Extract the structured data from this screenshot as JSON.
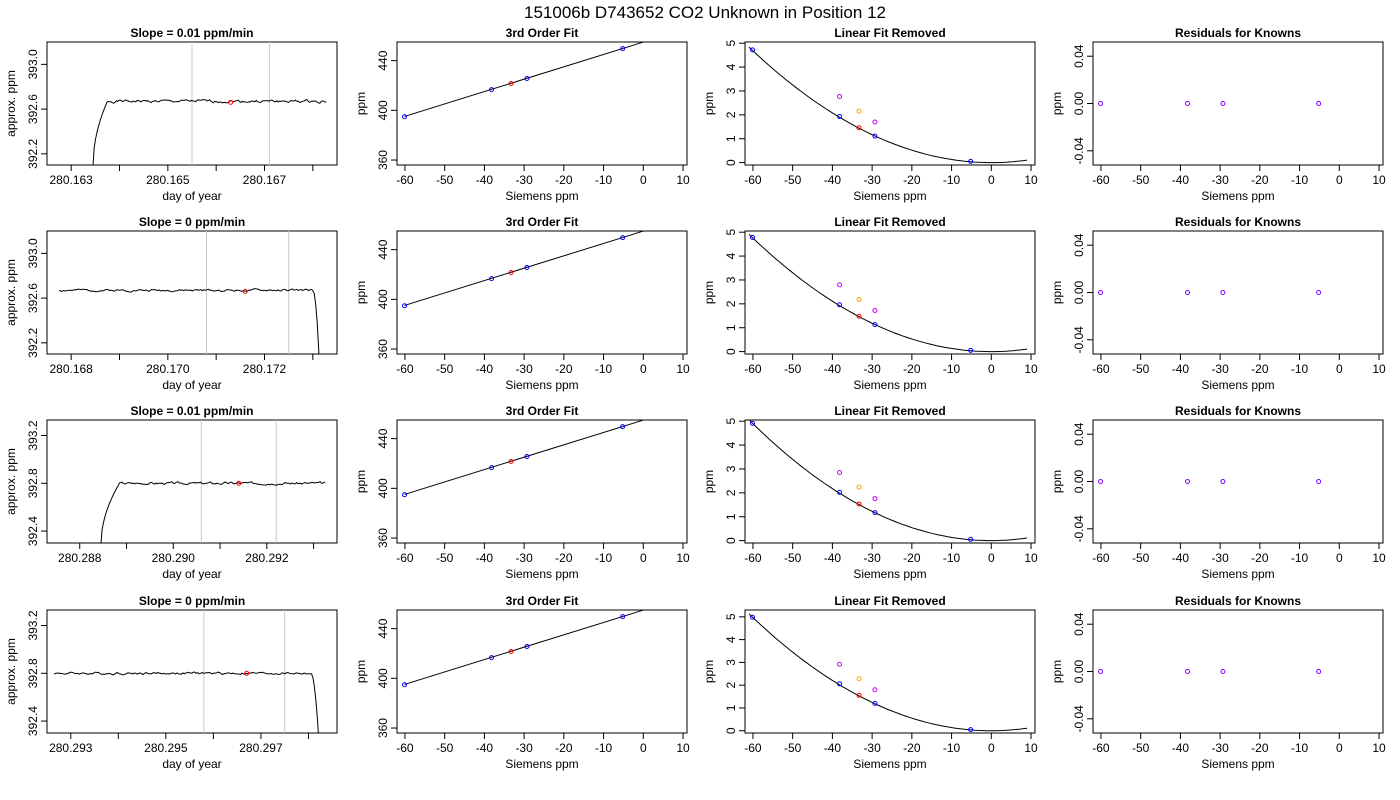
{
  "title": "151006b      D743652    CO2 Unknown in Position  12",
  "colors": {
    "axis": "#000000",
    "trace": "#000000",
    "window_line": "#c8c8c8",
    "marker": "#ff0000",
    "known_point": "#0000ff",
    "unknown_point": "#ff0000",
    "raw_point_a": "#cc00ff",
    "raw_point_b": "#ffa500",
    "residual_point": "#8000ff"
  },
  "chart_data": [
    {
      "row": 1,
      "type": "line",
      "title": "Slope =  0.01  ppm/min",
      "xlabel": "day of year",
      "ylabel": "approx. ppm",
      "xlim": [
        280.1625,
        280.1685
      ],
      "ylim": [
        392.1,
        393.2
      ],
      "xticks": [
        280.163,
        280.164,
        280.165,
        280.166,
        280.167,
        280.168
      ],
      "xtick_labels": [
        "280.163",
        "",
        "280.165",
        "",
        "280.167",
        ""
      ],
      "yticks": [
        392.2,
        392.6,
        393.0
      ],
      "ytick_labels": [
        "392.2",
        "392.6",
        "393.0"
      ],
      "vlines": [
        280.1655,
        280.1671
      ],
      "marker": {
        "x": 280.1663,
        "y": 392.66
      },
      "trace": {
        "start": 280.16345,
        "end": 280.16828,
        "rise_from": 392.08,
        "rise_end": 280.16375,
        "base": 392.67,
        "amp": 0.025,
        "seed": 1,
        "tail": "none"
      }
    },
    {
      "row": 1,
      "type": "scatter",
      "title": "3rd Order Fit",
      "xlabel": "Siemens ppm",
      "ylabel": "ppm",
      "xlim": [
        -62,
        11
      ],
      "ylim": [
        356,
        455
      ],
      "xticks": [
        -60,
        -50,
        -40,
        -30,
        -20,
        -10,
        0,
        10
      ],
      "xtick_labels": [
        "-60",
        "-50",
        "-40",
        "-30",
        "-20",
        "-10",
        "0",
        "10"
      ],
      "yticks": [
        360,
        400,
        440
      ],
      "ytick_labels": [
        "360",
        "400",
        "440"
      ],
      "fit": {
        "intercept": 454.9,
        "slope": 1.0
      },
      "known_x": [
        -60.1,
        -38.2,
        -29.3,
        -5.2
      ],
      "unknown_x": [
        -33.3
      ]
    },
    {
      "row": 1,
      "type": "scatter",
      "title": "Linear Fit Removed",
      "xlabel": "Siemens ppm",
      "ylabel": "ppm",
      "xlim": [
        -62,
        11
      ],
      "ylim": [
        -0.1,
        5.05
      ],
      "xticks": [
        -60,
        -50,
        -40,
        -30,
        -20,
        -10,
        0,
        10
      ],
      "xtick_labels": [
        "-60",
        "-50",
        "-40",
        "-30",
        "-20",
        "-10",
        "0",
        "10"
      ],
      "yticks": [
        0,
        1,
        2,
        3,
        4,
        5
      ],
      "ytick_labels": [
        "0",
        "1",
        "2",
        "3",
        "4",
        "5"
      ],
      "curve": {
        "a": 0.0013,
        "vertex": 0,
        "base": 0,
        "x_end": 9
      },
      "known_points": [
        [
          -60.1,
          4.72
        ],
        [
          -38.2,
          1.93
        ],
        [
          -29.3,
          1.11
        ],
        [
          -5.2,
          0.05
        ]
      ],
      "unknown_point": [
        -33.3,
        1.46
      ],
      "raw_a": [
        [
          -38.2,
          2.77
        ],
        [
          -29.3,
          1.7
        ]
      ],
      "raw_b": [
        [
          -33.3,
          2.15
        ]
      ]
    },
    {
      "row": 1,
      "type": "scatter",
      "title": "Residuals for Knowns",
      "xlabel": "Siemens ppm",
      "ylabel": "ppm",
      "xlim": [
        -62,
        11
      ],
      "ylim": [
        -0.052,
        0.052
      ],
      "xticks": [
        -60,
        -50,
        -40,
        -30,
        -20,
        -10,
        0,
        10
      ],
      "xtick_labels": [
        "-60",
        "-50",
        "-40",
        "-30",
        "-20",
        "-10",
        "0",
        "10"
      ],
      "yticks": [
        -0.04,
        0.0,
        0.04
      ],
      "ytick_labels": [
        "-0.04",
        "0.00",
        "0.04"
      ],
      "points": [
        [
          -60.1,
          0
        ],
        [
          -38.2,
          0
        ],
        [
          -29.3,
          0
        ],
        [
          -5.2,
          0
        ]
      ]
    },
    {
      "row": 2,
      "type": "line",
      "title": "Slope =  0  ppm/min",
      "xlabel": "day of year",
      "ylabel": "approx. ppm",
      "xlim": [
        280.1675,
        280.1735
      ],
      "ylim": [
        392.1,
        393.2
      ],
      "xticks": [
        280.168,
        280.169,
        280.17,
        280.171,
        280.172,
        280.173
      ],
      "xtick_labels": [
        "280.168",
        "",
        "280.170",
        "",
        "280.172",
        ""
      ],
      "yticks": [
        392.2,
        392.6,
        393.0
      ],
      "ytick_labels": [
        "392.2",
        "392.6",
        "393.0"
      ],
      "vlines": [
        280.1708,
        280.1725
      ],
      "marker": {
        "x": 280.1716,
        "y": 392.66
      },
      "trace": {
        "start": 280.16775,
        "end": 280.17315,
        "rise_from": null,
        "rise_end": null,
        "base": 392.67,
        "amp": 0.02,
        "seed": 2,
        "tail": "drop",
        "tail_start": 280.173
      }
    },
    {
      "row": 2,
      "type": "scatter",
      "title": "3rd Order Fit",
      "xlabel": "Siemens ppm",
      "ylabel": "ppm",
      "xlim": [
        -62,
        11
      ],
      "ylim": [
        356,
        455
      ],
      "xticks": [
        -60,
        -50,
        -40,
        -30,
        -20,
        -10,
        0,
        10
      ],
      "xtick_labels": [
        "-60",
        "-50",
        "-40",
        "-30",
        "-20",
        "-10",
        "0",
        "10"
      ],
      "yticks": [
        360,
        400,
        440
      ],
      "ytick_labels": [
        "360",
        "400",
        "440"
      ],
      "fit": {
        "intercept": 454.9,
        "slope": 1.0
      },
      "known_x": [
        -60.1,
        -38.2,
        -29.3,
        -5.2
      ],
      "unknown_x": [
        -33.3
      ]
    },
    {
      "row": 2,
      "type": "scatter",
      "title": "Linear Fit Removed",
      "xlabel": "Siemens ppm",
      "ylabel": "ppm",
      "xlim": [
        -62,
        11
      ],
      "ylim": [
        -0.1,
        5.05
      ],
      "xticks": [
        -60,
        -50,
        -40,
        -30,
        -20,
        -10,
        0,
        10
      ],
      "xtick_labels": [
        "-60",
        "-50",
        "-40",
        "-30",
        "-20",
        "-10",
        "0",
        "10"
      ],
      "yticks": [
        0,
        1,
        2,
        3,
        4,
        5
      ],
      "ytick_labels": [
        "0",
        "1",
        "2",
        "3",
        "4",
        "5"
      ],
      "curve": {
        "a": 0.00132,
        "vertex": 0,
        "base": 0,
        "x_end": 9
      },
      "known_points": [
        [
          -60.1,
          4.78
        ],
        [
          -38.2,
          1.96
        ],
        [
          -29.3,
          1.13
        ],
        [
          -5.2,
          0.05
        ]
      ],
      "unknown_point": [
        -33.3,
        1.48
      ],
      "raw_a": [
        [
          -38.2,
          2.8
        ],
        [
          -29.3,
          1.72
        ]
      ],
      "raw_b": [
        [
          -33.3,
          2.18
        ]
      ]
    },
    {
      "row": 2,
      "type": "scatter",
      "title": "Residuals for Knowns",
      "xlabel": "Siemens ppm",
      "ylabel": "ppm",
      "xlim": [
        -62,
        11
      ],
      "ylim": [
        -0.052,
        0.052
      ],
      "xticks": [
        -60,
        -50,
        -40,
        -30,
        -20,
        -10,
        0,
        10
      ],
      "xtick_labels": [
        "-60",
        "-50",
        "-40",
        "-30",
        "-20",
        "-10",
        "0",
        "10"
      ],
      "yticks": [
        -0.04,
        0.0,
        0.04
      ],
      "ytick_labels": [
        "-0.04",
        "0.00",
        "0.04"
      ],
      "points": [
        [
          -60.1,
          0
        ],
        [
          -38.2,
          0
        ],
        [
          -29.3,
          0
        ],
        [
          -5.2,
          0
        ]
      ]
    },
    {
      "row": 3,
      "type": "line",
      "title": "Slope =  0.01  ppm/min",
      "xlabel": "day of year",
      "ylabel": "approx. ppm",
      "xlim": [
        280.2873,
        280.2935
      ],
      "ylim": [
        392.3,
        393.33
      ],
      "xticks": [
        280.288,
        280.289,
        280.29,
        280.291,
        280.292,
        280.293
      ],
      "xtick_labels": [
        "280.288",
        "",
        "280.290",
        "",
        "280.292",
        ""
      ],
      "yticks": [
        392.4,
        392.8,
        393.2
      ],
      "ytick_labels": [
        "392.4",
        "392.8",
        "393.2"
      ],
      "vlines": [
        280.2906,
        280.2922
      ],
      "marker": {
        "x": 280.2914,
        "y": 392.8
      },
      "trace": {
        "start": 280.28845,
        "end": 280.29325,
        "rise_from": 392.27,
        "rise_end": 280.28885,
        "base": 392.8,
        "amp": 0.02,
        "seed": 3,
        "tail": "none"
      }
    },
    {
      "row": 3,
      "type": "scatter",
      "title": "3rd Order Fit",
      "xlabel": "Siemens ppm",
      "ylabel": "ppm",
      "xlim": [
        -62,
        11
      ],
      "ylim": [
        356,
        455
      ],
      "xticks": [
        -60,
        -50,
        -40,
        -30,
        -20,
        -10,
        0,
        10
      ],
      "xtick_labels": [
        "-60",
        "-50",
        "-40",
        "-30",
        "-20",
        "-10",
        "0",
        "10"
      ],
      "yticks": [
        360,
        400,
        440
      ],
      "ytick_labels": [
        "360",
        "400",
        "440"
      ],
      "fit": {
        "intercept": 454.9,
        "slope": 1.0
      },
      "known_x": [
        -60.1,
        -38.2,
        -29.3,
        -5.2
      ],
      "unknown_x": [
        -33.3
      ]
    },
    {
      "row": 3,
      "type": "scatter",
      "title": "Linear Fit Removed",
      "xlabel": "Siemens ppm",
      "ylabel": "ppm",
      "xlim": [
        -62,
        11
      ],
      "ylim": [
        -0.1,
        5.05
      ],
      "xticks": [
        -60,
        -50,
        -40,
        -30,
        -20,
        -10,
        0,
        10
      ],
      "xtick_labels": [
        "-60",
        "-50",
        "-40",
        "-30",
        "-20",
        "-10",
        "0",
        "10"
      ],
      "yticks": [
        0,
        1,
        2,
        3,
        4,
        5
      ],
      "ytick_labels": [
        "0",
        "1",
        "2",
        "3",
        "4",
        "5"
      ],
      "curve": {
        "a": 0.00136,
        "vertex": 0,
        "base": 0,
        "x_end": 9
      },
      "known_points": [
        [
          -60.1,
          4.91
        ],
        [
          -38.2,
          2.02
        ],
        [
          -29.3,
          1.17
        ],
        [
          -5.2,
          0.05
        ]
      ],
      "unknown_point": [
        -33.3,
        1.53
      ],
      "raw_a": [
        [
          -38.2,
          2.85
        ],
        [
          -29.3,
          1.76
        ]
      ],
      "raw_b": [
        [
          -33.3,
          2.24
        ]
      ]
    },
    {
      "row": 3,
      "type": "scatter",
      "title": "Residuals for Knowns",
      "xlabel": "Siemens ppm",
      "ylabel": "ppm",
      "xlim": [
        -62,
        11
      ],
      "ylim": [
        -0.052,
        0.052
      ],
      "xticks": [
        -60,
        -50,
        -40,
        -30,
        -20,
        -10,
        0,
        10
      ],
      "xtick_labels": [
        "-60",
        "-50",
        "-40",
        "-30",
        "-20",
        "-10",
        "0",
        "10"
      ],
      "yticks": [
        -0.04,
        0.0,
        0.04
      ],
      "ytick_labels": [
        "-0.04",
        "0.00",
        "0.04"
      ],
      "points": [
        [
          -60.1,
          0
        ],
        [
          -38.2,
          0
        ],
        [
          -29.3,
          0
        ],
        [
          -5.2,
          0
        ]
      ]
    },
    {
      "row": 4,
      "type": "line",
      "title": "Slope =  0  ppm/min",
      "xlabel": "day of year",
      "ylabel": "approx. ppm",
      "xlim": [
        280.2925,
        280.2986
      ],
      "ylim": [
        392.3,
        393.33
      ],
      "xticks": [
        280.293,
        280.294,
        280.295,
        280.296,
        280.297,
        280.298
      ],
      "xtick_labels": [
        "280.293",
        "",
        "280.295",
        "",
        "280.297",
        ""
      ],
      "yticks": [
        392.4,
        392.8,
        393.2
      ],
      "ytick_labels": [
        "392.4",
        "392.8",
        "393.2"
      ],
      "vlines": [
        280.2958,
        280.2975
      ],
      "marker": {
        "x": 280.2967,
        "y": 392.8
      },
      "trace": {
        "start": 280.29265,
        "end": 280.29825,
        "rise_from": null,
        "rise_end": null,
        "base": 392.8,
        "amp": 0.02,
        "seed": 4,
        "tail": "drop",
        "tail_start": 280.29805
      }
    },
    {
      "row": 4,
      "type": "scatter",
      "title": "3rd Order Fit",
      "xlabel": "Siemens ppm",
      "ylabel": "ppm",
      "xlim": [
        -62,
        11
      ],
      "ylim": [
        356,
        455
      ],
      "xticks": [
        -60,
        -50,
        -40,
        -30,
        -20,
        -10,
        0,
        10
      ],
      "xtick_labels": [
        "-60",
        "-50",
        "-40",
        "-30",
        "-20",
        "-10",
        "0",
        "10"
      ],
      "yticks": [
        360,
        400,
        440
      ],
      "ytick_labels": [
        "360",
        "400",
        "440"
      ],
      "fit": {
        "intercept": 454.9,
        "slope": 1.0
      },
      "known_x": [
        -60.1,
        -38.2,
        -29.3,
        -5.2
      ],
      "unknown_x": [
        -33.3
      ]
    },
    {
      "row": 4,
      "type": "scatter",
      "title": "Linear Fit Removed",
      "xlabel": "Siemens ppm",
      "ylabel": "ppm",
      "xlim": [
        -62,
        11
      ],
      "ylim": [
        -0.1,
        5.3
      ],
      "xticks": [
        -60,
        -50,
        -40,
        -30,
        -20,
        -10,
        0,
        10
      ],
      "xtick_labels": [
        "-60",
        "-50",
        "-40",
        "-30",
        "-20",
        "-10",
        "0",
        "10"
      ],
      "yticks": [
        0,
        1,
        2,
        3,
        4,
        5
      ],
      "ytick_labels": [
        "0",
        "1",
        "2",
        "3",
        "4",
        "5"
      ],
      "curve": {
        "a": 0.00138,
        "vertex": 0,
        "base": 0,
        "x_end": 9
      },
      "known_points": [
        [
          -60.1,
          4.98
        ],
        [
          -38.2,
          2.06
        ],
        [
          -29.3,
          1.2
        ],
        [
          -5.2,
          0.05
        ]
      ],
      "unknown_point": [
        -33.3,
        1.56
      ],
      "raw_a": [
        [
          -38.2,
          2.92
        ],
        [
          -29.3,
          1.8
        ]
      ],
      "raw_b": [
        [
          -33.3,
          2.28
        ]
      ]
    },
    {
      "row": 4,
      "type": "scatter",
      "title": "Residuals for Knowns",
      "xlabel": "Siemens ppm",
      "ylabel": "ppm",
      "xlim": [
        -62,
        11
      ],
      "ylim": [
        -0.052,
        0.052
      ],
      "xticks": [
        -60,
        -50,
        -40,
        -30,
        -20,
        -10,
        0,
        10
      ],
      "xtick_labels": [
        "-60",
        "-50",
        "-40",
        "-30",
        "-20",
        "-10",
        "0",
        "10"
      ],
      "yticks": [
        -0.04,
        0.0,
        0.04
      ],
      "ytick_labels": [
        "-0.04",
        "0.00",
        "0.04"
      ],
      "points": [
        [
          -60.1,
          0
        ],
        [
          -38.2,
          0
        ],
        [
          -29.3,
          0
        ],
        [
          -5.2,
          0
        ]
      ]
    }
  ]
}
